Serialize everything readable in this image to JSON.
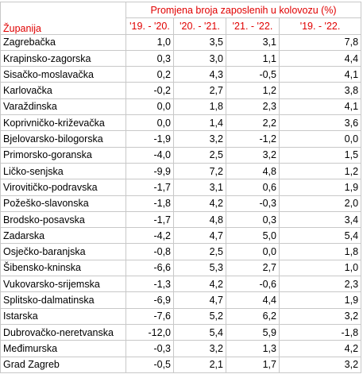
{
  "table": {
    "region_header": "Županija",
    "group_header": "Promjena broja zaposlenih u kolovozu (%)",
    "columns": [
      "'19. - '20.",
      "'20. - '21.",
      "'21. - '22.",
      "'19. - '22."
    ],
    "rows": [
      [
        "Zagrebačka",
        "1,0",
        "3,5",
        "3,1",
        "7,8"
      ],
      [
        "Krapinsko-zagorska",
        "0,3",
        "3,0",
        "1,1",
        "4,4"
      ],
      [
        "Sisačko-moslavačka",
        "0,2",
        "4,3",
        "-0,5",
        "4,1"
      ],
      [
        "Karlovačka",
        "-0,2",
        "2,7",
        "1,2",
        "3,8"
      ],
      [
        "Varaždinska",
        "0,0",
        "1,8",
        "2,3",
        "4,1"
      ],
      [
        "Koprivničko-križevačka",
        "0,0",
        "1,4",
        "2,2",
        "3,6"
      ],
      [
        "Bjelovarsko-bilogorska",
        "-1,9",
        "3,2",
        "-1,2",
        "0,0"
      ],
      [
        "Primorsko-goranska",
        "-4,0",
        "2,5",
        "3,2",
        "1,5"
      ],
      [
        "Ličko-senjska",
        "-9,9",
        "7,2",
        "4,8",
        "1,2"
      ],
      [
        "Virovitičko-podravska",
        "-1,7",
        "3,1",
        "0,6",
        "1,9"
      ],
      [
        "Požeško-slavonska",
        "-1,8",
        "4,2",
        "-0,3",
        "2,0"
      ],
      [
        "Brodsko-posavska",
        "-1,7",
        "4,8",
        "0,3",
        "3,4"
      ],
      [
        "Zadarska",
        "-4,2",
        "4,7",
        "5,0",
        "5,4"
      ],
      [
        "Osječko-baranjska",
        "-0,8",
        "2,5",
        "0,0",
        "1,8"
      ],
      [
        "Šibensko-kninska",
        "-6,6",
        "5,3",
        "2,7",
        "1,0"
      ],
      [
        "Vukovarsko-srijemska",
        "-1,3",
        "4,2",
        "-0,6",
        "2,3"
      ],
      [
        "Splitsko-dalmatinska",
        "-6,9",
        "4,7",
        "4,4",
        "1,9"
      ],
      [
        "Istarska",
        "-7,6",
        "5,2",
        "6,2",
        "3,2"
      ],
      [
        "Dubrovačko-neretvanska",
        "-12,0",
        "5,4",
        "5,9",
        "-1,8"
      ],
      [
        "Međimurska",
        "-0,3",
        "3,2",
        "1,3",
        "4,2"
      ],
      [
        "Grad Zagreb",
        "-0,5",
        "2,1",
        "1,7",
        "3,2"
      ]
    ]
  }
}
